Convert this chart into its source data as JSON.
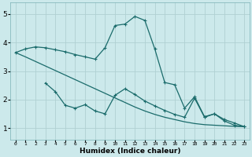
{
  "xlabel": "Humidex (Indice chaleur)",
  "xlim": [
    -0.5,
    23.5
  ],
  "ylim": [
    0.6,
    5.4
  ],
  "xticks": [
    0,
    1,
    2,
    3,
    4,
    5,
    6,
    7,
    8,
    9,
    10,
    11,
    12,
    13,
    14,
    15,
    16,
    17,
    18,
    19,
    20,
    21,
    22,
    23
  ],
  "yticks": [
    1,
    2,
    3,
    4,
    5
  ],
  "bg_color": "#cce9eb",
  "grid_color": "#b0d0d2",
  "line_color": "#1a6b6b",
  "line1_x": [
    0,
    1,
    2,
    3,
    4,
    5,
    6,
    7,
    8,
    9,
    10,
    11,
    12,
    13,
    14,
    15,
    16,
    17,
    18,
    19,
    20,
    21,
    22,
    23
  ],
  "line1_y": [
    3.65,
    3.78,
    3.85,
    3.82,
    3.75,
    3.68,
    3.58,
    3.5,
    3.42,
    3.82,
    4.6,
    4.65,
    4.92,
    4.78,
    3.78,
    2.6,
    2.52,
    1.7,
    2.1,
    1.4,
    1.5,
    1.25,
    1.1,
    1.05
  ],
  "line2_x": [
    0,
    1,
    2,
    3,
    4,
    5,
    6,
    7,
    8,
    9,
    10,
    11,
    12,
    13,
    14,
    15,
    16,
    17,
    18,
    19,
    20,
    21,
    22,
    23
  ],
  "line2_y": [
    3.65,
    3.5,
    3.34,
    3.18,
    3.02,
    2.86,
    2.7,
    2.54,
    2.38,
    2.22,
    2.06,
    1.9,
    1.74,
    1.6,
    1.48,
    1.38,
    1.3,
    1.22,
    1.16,
    1.12,
    1.1,
    1.08,
    1.06,
    1.05
  ],
  "line3_x": [
    3,
    4,
    5,
    6,
    7,
    8,
    9,
    10,
    11,
    12,
    13,
    14,
    15,
    16,
    17,
    18,
    19,
    20,
    21,
    22,
    23
  ],
  "line3_y": [
    2.58,
    2.28,
    1.8,
    1.7,
    1.82,
    1.6,
    1.5,
    2.15,
    2.38,
    2.18,
    1.95,
    1.78,
    1.62,
    1.48,
    1.38,
    2.05,
    1.38,
    1.5,
    1.3,
    1.18,
    1.05
  ]
}
